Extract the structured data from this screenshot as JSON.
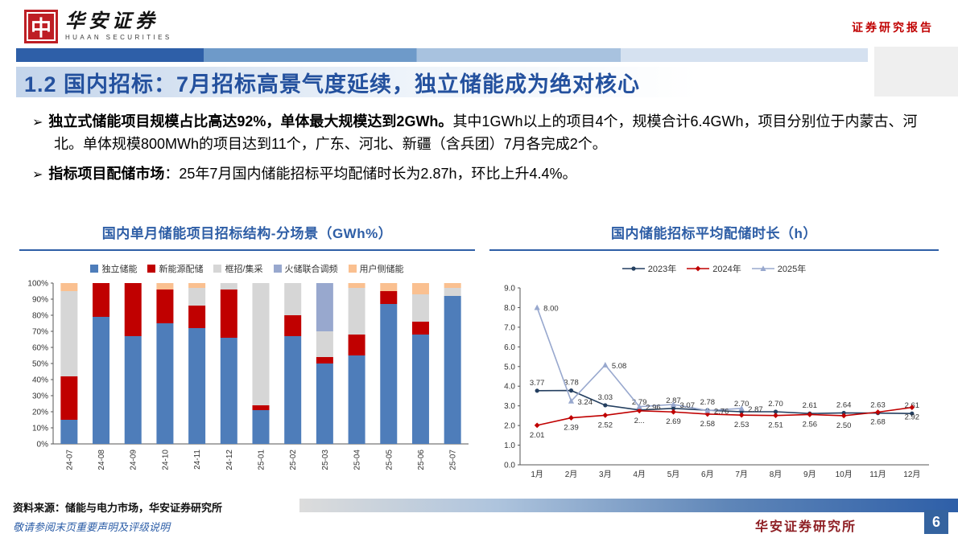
{
  "header": {
    "logo_glyph": "中",
    "logo_title": "华安证券",
    "logo_subtitle": "HUAAN SECURITIES",
    "report_type": "证券研究报告"
  },
  "title": {
    "text": "1.2 国内招标：7月招标高景气度延续，独立储能成为绝对核心"
  },
  "bullet_marker": "➢",
  "bullets": [
    {
      "bold": "独立式储能项目规模占比高达92%，单体最大规模达到2GWh。",
      "rest": "其中1GWh以上的项目4个，规模合计6.4GWh，项目分别位于内蒙古、河北。单体规模800MWh的项目达到11个，广东、河北、新疆（含兵团）7月各完成2个。"
    },
    {
      "bold": "指标项目配储市场",
      "rest": "：25年7月国内储能招标平均配储时长为2.87h，环比上升4.4%。"
    }
  ],
  "chart_data": [
    {
      "type": "bar",
      "stacked": true,
      "percent": true,
      "title": "国内单月储能项目招标结构-分场景（GWh%）",
      "categories": [
        "24-07",
        "24-08",
        "24-09",
        "24-10",
        "24-11",
        "24-12",
        "25-01",
        "25-02",
        "25-03",
        "25-04",
        "25-05",
        "25-06",
        "25-07"
      ],
      "series": [
        {
          "name": "独立储能",
          "color": "#4E7DBA",
          "values": [
            15,
            79,
            67,
            75,
            72,
            66,
            21,
            67,
            50,
            55,
            87,
            68,
            92
          ]
        },
        {
          "name": "新能源配储",
          "color": "#C00000",
          "values": [
            27,
            21,
            33,
            21,
            14,
            30,
            3,
            13,
            4,
            13,
            8,
            8,
            0
          ]
        },
        {
          "name": "框招/集采",
          "color": "#D6D6D6",
          "values": [
            53,
            0,
            0,
            0,
            11,
            4,
            76,
            20,
            16,
            29,
            0,
            17,
            5
          ]
        },
        {
          "name": "火储联合调频",
          "color": "#98A8CE",
          "values": [
            0,
            0,
            0,
            0,
            0,
            0,
            0,
            0,
            30,
            0,
            0,
            0,
            0
          ]
        },
        {
          "name": "用户侧储能",
          "color": "#FAC090",
          "values": [
            5,
            0,
            0,
            4,
            3,
            0,
            0,
            0,
            0,
            3,
            5,
            7,
            3
          ]
        }
      ],
      "ylim": [
        0,
        100
      ],
      "yticks": [
        "0%",
        "10%",
        "20%",
        "30%",
        "40%",
        "50%",
        "60%",
        "70%",
        "80%",
        "90%",
        "100%"
      ],
      "grid": false,
      "legend_position": "top"
    },
    {
      "type": "line",
      "title": "国内储能招标平均配储时长（h）",
      "categories": [
        "1月",
        "2月",
        "3月",
        "4月",
        "5月",
        "6月",
        "7月",
        "8月",
        "9月",
        "10月",
        "11月",
        "12月"
      ],
      "series": [
        {
          "name": "2023年",
          "color": "#243F60",
          "marker": "circle",
          "values": [
            3.77,
            3.78,
            3.03,
            2.79,
            2.87,
            2.78,
            2.7,
            2.7,
            2.61,
            2.64,
            2.63,
            2.61
          ],
          "labels": [
            "3.77",
            "3.78",
            "3.03",
            "2.79",
            "2.87",
            "2.78",
            "2.70",
            "2.70",
            "2.61",
            "2.64",
            "2.63",
            "2.61"
          ]
        },
        {
          "name": "2024年",
          "color": "#C00000",
          "marker": "diamond",
          "values": [
            2.01,
            2.39,
            2.52,
            2.75,
            2.69,
            2.58,
            2.53,
            2.51,
            2.56,
            2.5,
            2.68,
            2.92
          ],
          "labels": [
            "2.01",
            "2.39",
            "2.52",
            "2...",
            "2.69",
            "2.58",
            "2.53",
            "2.51",
            "2.56",
            "2.50",
            "2.68",
            "2.92"
          ]
        },
        {
          "name": "2025年",
          "color": "#98A8CE",
          "marker": "triangle",
          "values": [
            8.0,
            3.24,
            5.08,
            2.96,
            3.07,
            2.76,
            2.87,
            null,
            null,
            null,
            null,
            null
          ],
          "labels": [
            "8.00",
            "3.24",
            "5.08",
            "2.96",
            "3.07",
            "2.76",
            "2.87",
            "",
            "",
            "",
            "",
            ""
          ]
        }
      ],
      "ylim": [
        0,
        9
      ],
      "ytick_step": 1,
      "grid": false,
      "legend_position": "top"
    }
  ],
  "footer": {
    "source": "资料来源：储能与电力市场，华安证券研究所",
    "disclaimer": "敬请参阅末页重要声明及评级说明",
    "institute": "华安证券研究所",
    "page_number": "6"
  },
  "colors": {
    "accent_blue": "#2E5FA8",
    "brand_red": "#C00000"
  }
}
